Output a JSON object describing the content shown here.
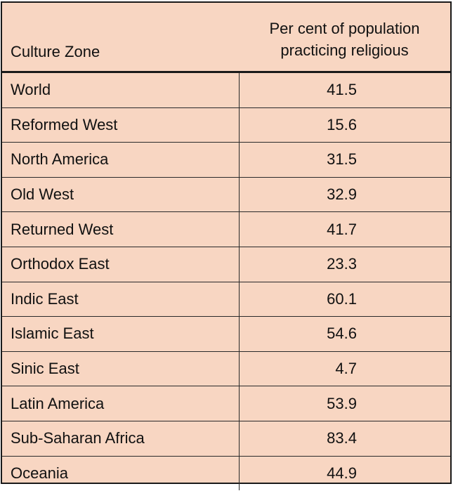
{
  "table": {
    "headers": {
      "zone": "Culture Zone",
      "pct_line1": "Per cent of population",
      "pct_line2": "practicing religious"
    },
    "rows": [
      {
        "zone": "World",
        "value": "41.5"
      },
      {
        "zone": "Reformed West",
        "value": "15.6"
      },
      {
        "zone": "North America",
        "value": "31.5"
      },
      {
        "zone": "Old West",
        "value": "32.9"
      },
      {
        "zone": "Returned West",
        "value": "41.7"
      },
      {
        "zone": "Orthodox East",
        "value": "23.3"
      },
      {
        "zone": "Indic East",
        "value": "60.1"
      },
      {
        "zone": "Islamic East",
        "value": "54.6"
      },
      {
        "zone": "Sinic East",
        "value": "4.7"
      },
      {
        "zone": "Latin America",
        "value": "53.9"
      },
      {
        "zone": "Sub-Saharan Africa",
        "value": "83.4"
      },
      {
        "zone": "Oceania",
        "value": "44.9"
      }
    ]
  },
  "colors": {
    "cell_background": "#f8d6c2",
    "border": "#1a1a1a"
  }
}
